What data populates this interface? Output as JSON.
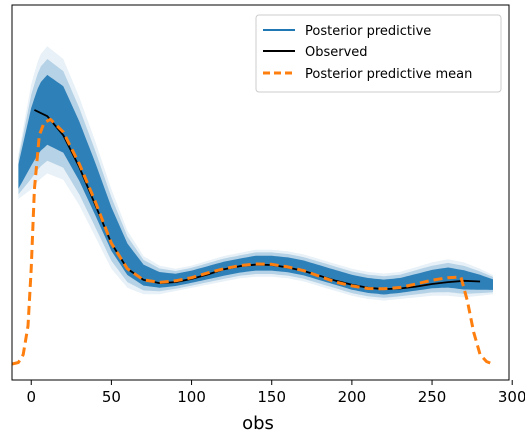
{
  "chart_data": {
    "type": "line",
    "title": "",
    "xlabel": "obs",
    "ylabel": "",
    "xlim": [
      -12,
      298
    ],
    "ylim": [
      -0.05,
      1.13
    ],
    "xticks": [
      0,
      50,
      100,
      150,
      200,
      250,
      300
    ],
    "grid": false,
    "legend_position": "top-right",
    "colors": {
      "posterior_predictive": "#1f77b4",
      "observed": "#000000",
      "posterior_predictive_mean": "#ff7f0e"
    },
    "legend": [
      {
        "label": "Posterior predictive",
        "style": "solid",
        "color": "#1f77b4"
      },
      {
        "label": "Observed",
        "style": "solid",
        "color": "#000000"
      },
      {
        "label": "Posterior predictive mean",
        "style": "dashed",
        "color": "#ff7f0e"
      }
    ],
    "series": [
      {
        "name": "Observed",
        "x": [
          2,
          10,
          20,
          30,
          40,
          50,
          60,
          70,
          80,
          90,
          100,
          110,
          120,
          130,
          140,
          150,
          160,
          170,
          180,
          190,
          200,
          210,
          220,
          230,
          240,
          250,
          260,
          270,
          280
        ],
        "y": [
          0.8,
          0.78,
          0.72,
          0.62,
          0.5,
          0.38,
          0.3,
          0.265,
          0.255,
          0.258,
          0.268,
          0.282,
          0.298,
          0.308,
          0.313,
          0.312,
          0.304,
          0.293,
          0.278,
          0.262,
          0.25,
          0.24,
          0.236,
          0.238,
          0.244,
          0.252,
          0.258,
          0.262,
          0.26
        ]
      },
      {
        "name": "Posterior predictive mean",
        "x": [
          -12,
          -8,
          -5,
          -2,
          0,
          2,
          5,
          8,
          12,
          20,
          30,
          40,
          50,
          60,
          70,
          80,
          90,
          100,
          110,
          120,
          130,
          140,
          150,
          160,
          170,
          180,
          190,
          200,
          210,
          220,
          230,
          240,
          250,
          260,
          268,
          272,
          276,
          280,
          284,
          288
        ],
        "y": [
          0.0,
          0.005,
          0.03,
          0.12,
          0.3,
          0.55,
          0.72,
          0.76,
          0.77,
          0.73,
          0.63,
          0.51,
          0.38,
          0.3,
          0.265,
          0.257,
          0.262,
          0.272,
          0.287,
          0.3,
          0.31,
          0.315,
          0.314,
          0.306,
          0.294,
          0.276,
          0.258,
          0.246,
          0.238,
          0.237,
          0.241,
          0.252,
          0.264,
          0.272,
          0.274,
          0.2,
          0.1,
          0.03,
          0.008,
          0.0
        ]
      }
    ],
    "posterior_predictive_band": {
      "name": "Posterior predictive",
      "x": [
        -8,
        0,
        5,
        10,
        20,
        30,
        40,
        50,
        60,
        70,
        80,
        90,
        100,
        110,
        120,
        130,
        140,
        150,
        160,
        170,
        180,
        190,
        200,
        210,
        220,
        230,
        240,
        250,
        260,
        270,
        280,
        288
      ],
      "lower": [
        0.52,
        0.55,
        0.58,
        0.6,
        0.58,
        0.5,
        0.4,
        0.3,
        0.24,
        0.22,
        0.22,
        0.23,
        0.24,
        0.25,
        0.26,
        0.27,
        0.275,
        0.275,
        0.27,
        0.26,
        0.245,
        0.23,
        0.215,
        0.205,
        0.2,
        0.205,
        0.21,
        0.215,
        0.215,
        0.21,
        0.215,
        0.22
      ],
      "upper": [
        0.66,
        0.88,
        0.97,
        1.0,
        0.96,
        0.84,
        0.7,
        0.55,
        0.42,
        0.34,
        0.31,
        0.3,
        0.31,
        0.325,
        0.34,
        0.35,
        0.36,
        0.36,
        0.355,
        0.345,
        0.33,
        0.315,
        0.3,
        0.29,
        0.285,
        0.29,
        0.305,
        0.32,
        0.33,
        0.32,
        0.3,
        0.28
      ]
    }
  }
}
